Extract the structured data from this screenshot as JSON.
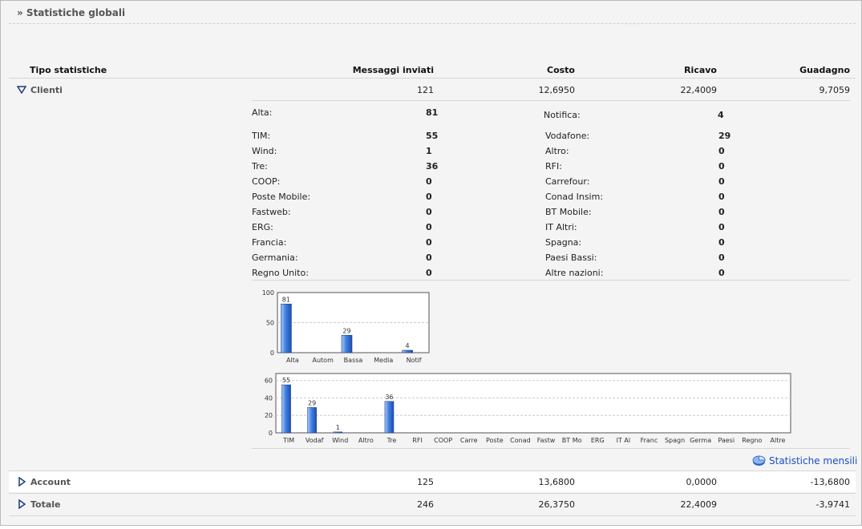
{
  "page_title": "» Statistiche globali",
  "headers": {
    "tipo": "Tipo statistiche",
    "messaggi": "Messaggi inviati",
    "costo": "Costo",
    "ricavo": "Ricavo",
    "guadagno": "Guadagno"
  },
  "rows": [
    {
      "label": "Clienti",
      "messaggi": "121",
      "costo": "12,6950",
      "ricavo": "22,4009",
      "guadagno": "9,7059",
      "expanded": true
    },
    {
      "label": "Account",
      "messaggi": "125",
      "costo": "13,6800",
      "ricavo": "0,0000",
      "guadagno": "-13,6800",
      "expanded": false
    },
    {
      "label": "Totale",
      "messaggi": "246",
      "costo": "26,3750",
      "ricavo": "22,4009",
      "guadagno": "-3,9741",
      "expanded": false
    }
  ],
  "priority": {
    "left": {
      "label": "Alta:",
      "value": "81"
    },
    "right": {
      "label": "Notifica:",
      "value": "4"
    }
  },
  "operators_left": [
    {
      "label": "TIM:",
      "value": "55"
    },
    {
      "label": "Wind:",
      "value": "1"
    },
    {
      "label": "Tre:",
      "value": "36"
    },
    {
      "label": "COOP:",
      "value": "0"
    },
    {
      "label": "Poste Mobile:",
      "value": "0"
    },
    {
      "label": "Fastweb:",
      "value": "0"
    },
    {
      "label": "ERG:",
      "value": "0"
    },
    {
      "label": "Francia:",
      "value": "0"
    },
    {
      "label": "Germania:",
      "value": "0"
    },
    {
      "label": "Regno Unito:",
      "value": "0"
    }
  ],
  "operators_right": [
    {
      "label": "Vodafone:",
      "value": "29"
    },
    {
      "label": "Altro:",
      "value": "0"
    },
    {
      "label": "RFI:",
      "value": "0"
    },
    {
      "label": "Carrefour:",
      "value": "0"
    },
    {
      "label": "Conad Insim:",
      "value": "0"
    },
    {
      "label": "BT Mobile:",
      "value": "0"
    },
    {
      "label": "IT Altri:",
      "value": "0"
    },
    {
      "label": "Spagna:",
      "value": "0"
    },
    {
      "label": "Paesi Bassi:",
      "value": "0"
    },
    {
      "label": "Altre nazioni:",
      "value": "0"
    }
  ],
  "monthly_link": "Statistiche mensili",
  "chart_data": [
    {
      "type": "bar",
      "categories": [
        "Alta",
        "Autom",
        "Bassa",
        "Media",
        "Notif"
      ],
      "values": [
        81,
        0,
        29,
        0,
        4
      ],
      "data_labels": [
        "81",
        "",
        "29",
        "",
        "4"
      ],
      "ylim": [
        0,
        100
      ],
      "yticks": [
        0,
        50,
        100
      ],
      "grid": true,
      "bar_color": "#3f7fe0"
    },
    {
      "type": "bar",
      "categories": [
        "TIM",
        "Vodaf",
        "Wind",
        "Altro",
        "Tre",
        "RFI",
        "COOP",
        "Carre",
        "Poste",
        "Conad",
        "Fastw",
        "BT Mo",
        "ERG",
        "IT Al",
        "Franc",
        "Spagn",
        "Germa",
        "Paesi",
        "Regno",
        "Altre"
      ],
      "values": [
        55,
        29,
        1,
        0,
        36,
        0,
        0,
        0,
        0,
        0,
        0,
        0,
        0,
        0,
        0,
        0,
        0,
        0,
        0,
        0
      ],
      "data_labels": [
        "55",
        "29",
        "1",
        "",
        "36",
        "",
        "",
        "",
        "",
        "",
        "",
        "",
        "",
        "",
        "",
        "",
        "",
        "",
        "",
        ""
      ],
      "ylim": [
        0,
        68
      ],
      "yticks": [
        0,
        20,
        40,
        60
      ],
      "grid": true,
      "bar_color": "#3f7fe0"
    }
  ]
}
